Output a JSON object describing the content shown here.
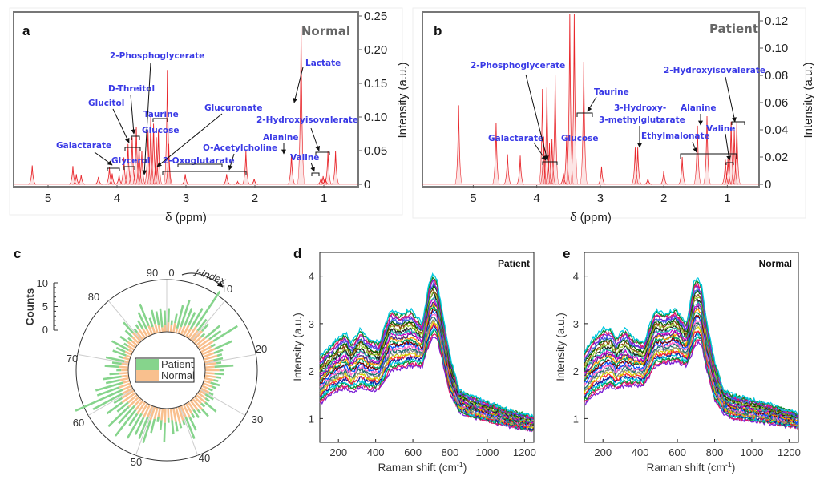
{
  "chart_data": [
    {
      "panel": "a",
      "type": "line",
      "title": "Normal",
      "xlabel": "δ (ppm)",
      "ylabel": "Intensity (a.u.)",
      "xlim": [
        5.5,
        0.5
      ],
      "ylim": [
        0,
        0.25
      ],
      "x_ticks": [
        "5",
        "4",
        "3",
        "2",
        "1"
      ],
      "y_ticks": [
        "0",
        "0.05",
        "0.10",
        "0.15",
        "0.20",
        "0.25"
      ],
      "peaks": [
        {
          "x": 5.23,
          "y": 0.028
        },
        {
          "x": 4.64,
          "y": 0.027
        },
        {
          "x": 4.59,
          "y": 0.015
        },
        {
          "x": 4.52,
          "y": 0.014
        },
        {
          "x": 4.27,
          "y": 0.011
        },
        {
          "x": 4.11,
          "y": 0.025
        },
        {
          "x": 4.07,
          "y": 0.016
        },
        {
          "x": 3.97,
          "y": 0.014
        },
        {
          "x": 3.9,
          "y": 0.04
        },
        {
          "x": 3.84,
          "y": 0.06
        },
        {
          "x": 3.78,
          "y": 0.07
        },
        {
          "x": 3.72,
          "y": 0.085
        },
        {
          "x": 3.68,
          "y": 0.06
        },
        {
          "x": 3.64,
          "y": 0.05
        },
        {
          "x": 3.55,
          "y": 0.08
        },
        {
          "x": 3.51,
          "y": 0.1
        },
        {
          "x": 3.47,
          "y": 0.09
        },
        {
          "x": 3.43,
          "y": 0.07
        },
        {
          "x": 3.4,
          "y": 0.08
        },
        {
          "x": 3.27,
          "y": 0.17
        },
        {
          "x": 3.25,
          "y": 0.06
        },
        {
          "x": 3.01,
          "y": 0.015
        },
        {
          "x": 2.41,
          "y": 0.015
        },
        {
          "x": 2.25,
          "y": 0.004
        },
        {
          "x": 2.13,
          "y": 0.05
        },
        {
          "x": 2.01,
          "y": 0.008
        },
        {
          "x": 1.47,
          "y": 0.045
        },
        {
          "x": 1.33,
          "y": 0.235
        },
        {
          "x": 1.04,
          "y": 0.01
        },
        {
          "x": 1.01,
          "y": 0.012
        },
        {
          "x": 0.98,
          "y": 0.01
        },
        {
          "x": 0.94,
          "y": 0.05
        },
        {
          "x": 0.83,
          "y": 0.05
        }
      ],
      "annotations": [
        "2-Phosphoglycerate",
        "D-Threitol",
        "Glucitol",
        "Taurine",
        "Glucose",
        "Glucuronate",
        "Galactarate",
        "Glycerol",
        "2-Oxoglutarate",
        "O-Acetylcholine",
        "Lactate",
        "2-Hydroxyisovalerate",
        "Alanine",
        "Valine"
      ]
    },
    {
      "panel": "b",
      "type": "line",
      "title": "Patient",
      "xlabel": "δ (ppm)",
      "ylabel": "Intensity (a.u.)",
      "xlim": [
        5.8,
        0.5
      ],
      "ylim": [
        0,
        0.12
      ],
      "x_ticks": [
        "5",
        "4",
        "3",
        "2",
        "1"
      ],
      "y_ticks": [
        "0",
        "0.02",
        "0.04",
        "0.06",
        "0.08",
        "0.10",
        "0.12"
      ],
      "peaks": [
        {
          "x": 5.23,
          "y": 0.058
        },
        {
          "x": 4.64,
          "y": 0.045
        },
        {
          "x": 4.46,
          "y": 0.022
        },
        {
          "x": 4.26,
          "y": 0.021
        },
        {
          "x": 3.91,
          "y": 0.07
        },
        {
          "x": 3.89,
          "y": 0.035
        },
        {
          "x": 3.84,
          "y": 0.071
        },
        {
          "x": 3.8,
          "y": 0.03
        },
        {
          "x": 3.76,
          "y": 0.033
        },
        {
          "x": 3.71,
          "y": 0.08
        },
        {
          "x": 3.58,
          "y": 0.008
        },
        {
          "x": 3.53,
          "y": 0.036
        },
        {
          "x": 3.48,
          "y": 0.125
        },
        {
          "x": 3.41,
          "y": 0.125
        },
        {
          "x": 3.26,
          "y": 0.09
        },
        {
          "x": 2.98,
          "y": 0.013
        },
        {
          "x": 2.45,
          "y": 0.027
        },
        {
          "x": 2.41,
          "y": 0.027
        },
        {
          "x": 2.25,
          "y": 0.004
        },
        {
          "x": 2.0,
          "y": 0.01
        },
        {
          "x": 1.71,
          "y": 0.02
        },
        {
          "x": 1.47,
          "y": 0.043
        },
        {
          "x": 1.32,
          "y": 0.05
        },
        {
          "x": 1.03,
          "y": 0.018
        },
        {
          "x": 0.99,
          "y": 0.019
        },
        {
          "x": 0.94,
          "y": 0.046
        },
        {
          "x": 0.89,
          "y": 0.04
        },
        {
          "x": 0.85,
          "y": 0.046
        }
      ],
      "annotations": [
        "2-Phosphoglycerate",
        "Taurine",
        "Galactarate",
        "Glucose",
        "3-Hydroxy-3-methylglutarate",
        "Alanine",
        "Ethylmalonate",
        "Valine",
        "2-Hydroxyisovalerate"
      ]
    },
    {
      "panel": "c",
      "type": "bar",
      "subtype": "polar-stacked",
      "ylabel": "Counts",
      "ylim": [
        0,
        10
      ],
      "y_ticks": [
        "0",
        "5",
        "10"
      ],
      "angular_label": "j-Index",
      "angular_ticks": [
        "0",
        "10",
        "20",
        "30",
        "40",
        "50",
        "60",
        "70",
        "80",
        "90"
      ],
      "legend": [
        "Patient",
        "Normal"
      ],
      "legend_position": "center",
      "series": [
        {
          "name": "Normal",
          "values": [
            2,
            1.5,
            2,
            1,
            1.5,
            2,
            2.5,
            2,
            3,
            2.5,
            3,
            2,
            2.5,
            3,
            3.5,
            2.5,
            3,
            2.5,
            3,
            2,
            2.5,
            2,
            3,
            2,
            2.5,
            2,
            1.5,
            2,
            1.5,
            2,
            1.5,
            2,
            2.5,
            2,
            3,
            2.5,
            2,
            2.5,
            3,
            2.5,
            3,
            3.5,
            3,
            2.5,
            2,
            3,
            2.5,
            2,
            2.5,
            3,
            2.5,
            3,
            2.5,
            3,
            2.5,
            2,
            3,
            2.5,
            3.5,
            3,
            2.5,
            2,
            2.5,
            1.5,
            2,
            1.5,
            2,
            1.5,
            2,
            1.5,
            1,
            1.5,
            1,
            1.5,
            1,
            1.5,
            2,
            1.5,
            2,
            2.5,
            2,
            2.5,
            2,
            1.5,
            2,
            1.5,
            2,
            1.5,
            1,
            1.5
          ]
        },
        {
          "name": "Patient",
          "values": [
            3,
            1,
            2,
            5,
            6,
            4,
            3,
            5,
            9,
            3,
            2,
            1,
            4,
            3,
            6,
            1,
            4,
            2,
            1,
            2,
            1,
            4,
            1,
            2,
            1,
            1,
            2,
            1,
            1,
            1,
            2,
            1,
            3,
            1,
            2,
            1,
            2,
            1,
            3,
            5,
            1,
            1,
            2,
            3,
            1,
            4,
            2,
            1,
            3,
            5,
            5,
            4,
            6,
            3,
            7,
            5,
            6,
            3,
            4,
            2,
            7,
            11,
            5,
            6,
            3,
            4,
            2,
            1,
            3,
            2,
            4,
            1,
            3,
            2,
            4,
            1,
            2,
            1,
            2,
            3,
            1,
            1,
            2,
            4,
            5,
            2,
            3,
            3,
            4,
            3
          ]
        }
      ]
    },
    {
      "panel": "d",
      "type": "line",
      "title": "Patient",
      "xlabel": "Raman shift (cm-1)",
      "ylabel": "Intensity (a.u.)",
      "xlim": [
        100,
        1250
      ],
      "ylim": [
        0.5,
        4.5
      ],
      "x_ticks": [
        "200",
        "400",
        "600",
        "800",
        "1000",
        "1200"
      ],
      "y_ticks": [
        "1",
        "2",
        "3",
        "4"
      ],
      "envelope": {
        "x": [
          100,
          150,
          200,
          240,
          270,
          320,
          360,
          420,
          480,
          530,
          590,
          650,
          690,
          710,
          730,
          760,
          800,
          850,
          900,
          1000,
          1100,
          1250
        ],
        "upper": [
          2.3,
          2.5,
          2.7,
          2.8,
          2.6,
          2.9,
          2.7,
          2.6,
          3.3,
          3.2,
          3.3,
          3.0,
          3.9,
          4.05,
          3.9,
          3.2,
          2.3,
          1.6,
          1.5,
          1.35,
          1.2,
          1.05
        ],
        "lower": [
          1.3,
          1.5,
          1.6,
          1.65,
          1.55,
          1.65,
          1.6,
          1.6,
          2.0,
          2.05,
          2.1,
          2.1,
          2.6,
          2.75,
          2.7,
          2.2,
          1.5,
          1.15,
          1.05,
          0.95,
          0.85,
          0.75
        ]
      }
    },
    {
      "panel": "e",
      "type": "line",
      "title": "Normal",
      "xlabel": "Raman shift (cm-1)",
      "ylabel": "Intensity (a.u.)",
      "xlim": [
        100,
        1250
      ],
      "ylim": [
        0.5,
        4.5
      ],
      "x_ticks": [
        "200",
        "400",
        "600",
        "800",
        "1000",
        "1200"
      ],
      "y_ticks": [
        "1",
        "2",
        "3",
        "4"
      ],
      "envelope": {
        "x": [
          100,
          150,
          200,
          240,
          270,
          320,
          360,
          420,
          480,
          530,
          590,
          650,
          690,
          710,
          730,
          760,
          800,
          850,
          900,
          1000,
          1100,
          1250
        ],
        "upper": [
          2.4,
          2.7,
          2.9,
          2.9,
          2.7,
          2.9,
          2.7,
          2.6,
          3.3,
          3.2,
          3.3,
          3.0,
          3.9,
          3.95,
          3.8,
          3.0,
          2.2,
          1.6,
          1.5,
          1.4,
          1.3,
          1.1
        ],
        "lower": [
          1.3,
          1.5,
          1.6,
          1.7,
          1.6,
          1.7,
          1.7,
          1.7,
          2.1,
          2.15,
          2.2,
          2.1,
          2.5,
          2.6,
          2.55,
          2.0,
          1.4,
          1.1,
          1.0,
          0.95,
          0.9,
          0.8
        ]
      }
    }
  ],
  "labels": {
    "a": "a",
    "b": "b",
    "c": "c",
    "d": "d",
    "e": "e",
    "normal": "Normal",
    "patient": "Patient",
    "ppm": "δ (ppm)",
    "intensity": "Intensity (a.u.)",
    "counts": "Counts",
    "jindex": "j-Index",
    "raman": "Raman shift (cm",
    "raman_sup": "-1",
    "raman_close": ")",
    "a_ann": {
      "phospho": "2-Phosphoglycerate",
      "threitol": "D-Threitol",
      "glucitol": "Glucitol",
      "taurine": "Taurine",
      "glucose": "Glucose",
      "glucuronate": "Glucuronate",
      "galactarate": "Galactarate",
      "glycerol": "Glycerol",
      "oxoglutarate": "2-Oxoglutarate",
      "acetylcholine": "O-Acetylcholine",
      "lactate": "Lactate",
      "hydroxyiso": "2-Hydroxyisovalerate",
      "alanine": "Alanine",
      "valine": "Valine"
    },
    "b_ann": {
      "phospho": "2-Phosphoglycerate",
      "taurine": "Taurine",
      "galactarate": "Galactarate",
      "glucose": "Glucose",
      "hmg1": "3-Hydroxy-",
      "hmg2": "3-methylglutarate",
      "alanine": "Alanine",
      "ethylmalonate": "Ethylmalonate",
      "valine": "Valine",
      "hydroxyiso": "2-Hydroxyisovalerate"
    },
    "c_ticks": {
      "t0": "0",
      "t10": "10",
      "t20": "20",
      "t30": "30",
      "t40": "40",
      "t50": "50",
      "t60": "60",
      "t70": "70",
      "t80": "80",
      "t90": "90"
    },
    "c_counts": {
      "c0": "0",
      "c5": "5",
      "c10": "10"
    }
  },
  "colors": {
    "nmr": "#e8262b",
    "annotation": "#3a3ae6",
    "patient_bar": "#86d48c",
    "normal_bar": "#f9c08e"
  }
}
